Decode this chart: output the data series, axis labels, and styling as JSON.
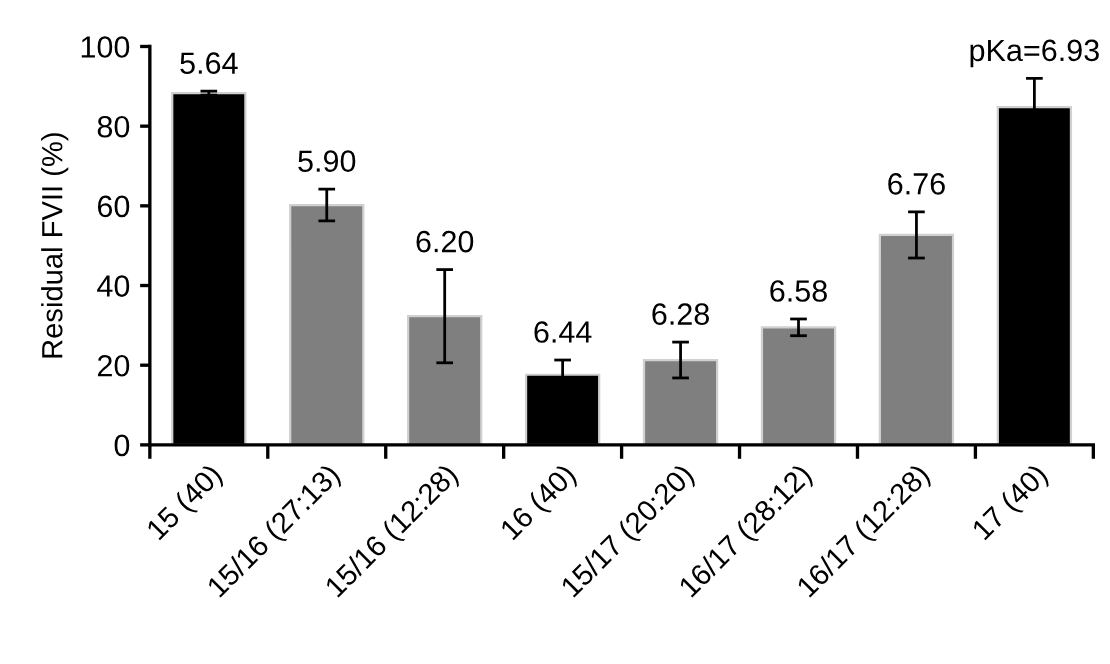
{
  "chart_data": {
    "type": "bar",
    "ylabel": "Residual FVII (%)",
    "categories": [
      "15 (40)",
      "15/16 (27:13)",
      "15/16 (12:28)",
      "16 (40)",
      "15/17 (20:20)",
      "16/17 (28:12)",
      "16/17 (12:28)",
      "17 (40)"
    ],
    "values": [
      88.3,
      60.2,
      32.3,
      17.6,
      21.3,
      29.5,
      52.7,
      84.8
    ],
    "errors": [
      0.5,
      4,
      11.7,
      3.7,
      4.5,
      2.1,
      5.8,
      7.2
    ],
    "colors": [
      "#000000",
      "#7f7f7f",
      "#7f7f7f",
      "#000000",
      "#7f7f7f",
      "#7f7f7f",
      "#7f7f7f",
      "#000000"
    ],
    "annotations": [
      {
        "text": "5.64",
        "x": "15 (40)",
        "y": 88.3
      },
      {
        "text": "5.90",
        "x": "15/16 (27:13)",
        "y": 60.2
      },
      {
        "text": "6.20",
        "x": "15/16 (12:28)",
        "y": 32.3
      },
      {
        "text": "6.44",
        "x": "16 (40)",
        "y": 17.6
      },
      {
        "text": "6.28",
        "x": "15/17 (20:20)",
        "y": 21.3
      },
      {
        "text": "6.58",
        "x": "16/17 (28:12)",
        "y": 29.5
      },
      {
        "text": "6.76",
        "x": "16/17 (12:28)",
        "y": 52.7
      },
      {
        "text": "pKa=6.93",
        "x": "17 (40)",
        "y": 84.8
      }
    ],
    "ylim": [
      0,
      100
    ],
    "yticks": [
      0,
      20,
      40,
      60,
      80,
      100
    ],
    "grid": false,
    "legend": false
  }
}
